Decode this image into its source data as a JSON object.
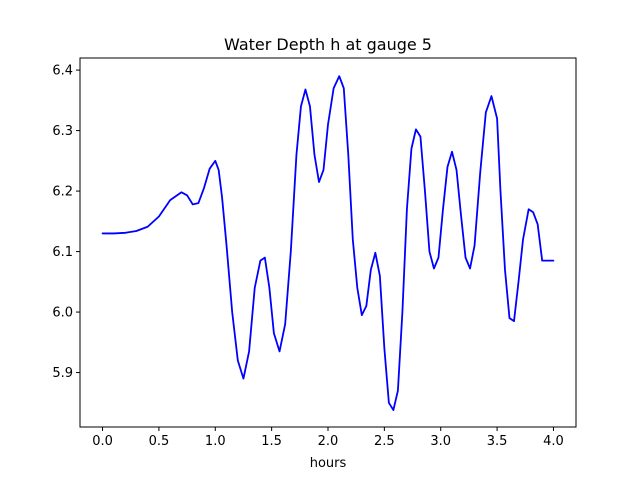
{
  "chart_data": {
    "type": "line",
    "title": "Water Depth h at gauge 5",
    "xlabel": "hours",
    "ylabel": "",
    "xlim": [
      -0.2,
      4.2
    ],
    "ylim": [
      5.81,
      6.42
    ],
    "x_ticks": [
      0.0,
      0.5,
      1.0,
      1.5,
      2.0,
      2.5,
      3.0,
      3.5,
      4.0
    ],
    "x_tick_labels": [
      "0.0",
      "0.5",
      "1.0",
      "1.5",
      "2.0",
      "2.5",
      "3.0",
      "3.5",
      "4.0"
    ],
    "y_ticks": [
      5.9,
      6.0,
      6.1,
      6.2,
      6.3,
      6.4
    ],
    "y_tick_labels": [
      "5.9",
      "6.0",
      "6.1",
      "6.2",
      "6.3",
      "6.4"
    ],
    "grid": false,
    "legend": "none",
    "series": [
      {
        "color": "#0000ff",
        "x": [
          0.0,
          0.1,
          0.2,
          0.3,
          0.4,
          0.5,
          0.6,
          0.7,
          0.75,
          0.8,
          0.85,
          0.9,
          0.95,
          1.0,
          1.03,
          1.06,
          1.1,
          1.15,
          1.2,
          1.25,
          1.3,
          1.35,
          1.4,
          1.44,
          1.48,
          1.52,
          1.57,
          1.62,
          1.67,
          1.72,
          1.76,
          1.8,
          1.84,
          1.88,
          1.92,
          1.96,
          2.0,
          2.05,
          2.1,
          2.14,
          2.18,
          2.22,
          2.26,
          2.3,
          2.34,
          2.38,
          2.42,
          2.46,
          2.5,
          2.54,
          2.58,
          2.62,
          2.66,
          2.7,
          2.74,
          2.78,
          2.82,
          2.86,
          2.9,
          2.94,
          2.98,
          3.02,
          3.06,
          3.1,
          3.14,
          3.18,
          3.22,
          3.26,
          3.3,
          3.35,
          3.4,
          3.45,
          3.5,
          3.53,
          3.57,
          3.61,
          3.65,
          3.69,
          3.73,
          3.78,
          3.82,
          3.86,
          3.9,
          3.94,
          3.98,
          4.0
        ],
        "y": [
          6.13,
          6.13,
          6.131,
          6.134,
          6.141,
          6.158,
          6.185,
          6.198,
          6.193,
          6.178,
          6.18,
          6.205,
          6.237,
          6.25,
          6.235,
          6.19,
          6.11,
          6.0,
          5.92,
          5.89,
          5.935,
          6.04,
          6.085,
          6.09,
          6.04,
          5.965,
          5.935,
          5.98,
          6.1,
          6.26,
          6.34,
          6.368,
          6.34,
          6.26,
          6.215,
          6.235,
          6.31,
          6.37,
          6.39,
          6.37,
          6.26,
          6.12,
          6.04,
          5.995,
          6.01,
          6.07,
          6.098,
          6.06,
          5.94,
          5.85,
          5.838,
          5.87,
          6.0,
          6.17,
          6.27,
          6.302,
          6.29,
          6.2,
          6.1,
          6.072,
          6.09,
          6.17,
          6.24,
          6.265,
          6.235,
          6.16,
          6.09,
          6.072,
          6.11,
          6.23,
          6.33,
          6.357,
          6.32,
          6.2,
          6.07,
          5.99,
          5.985,
          6.05,
          6.12,
          6.17,
          6.165,
          6.145,
          6.085,
          6.085,
          6.085,
          6.085
        ]
      }
    ]
  }
}
